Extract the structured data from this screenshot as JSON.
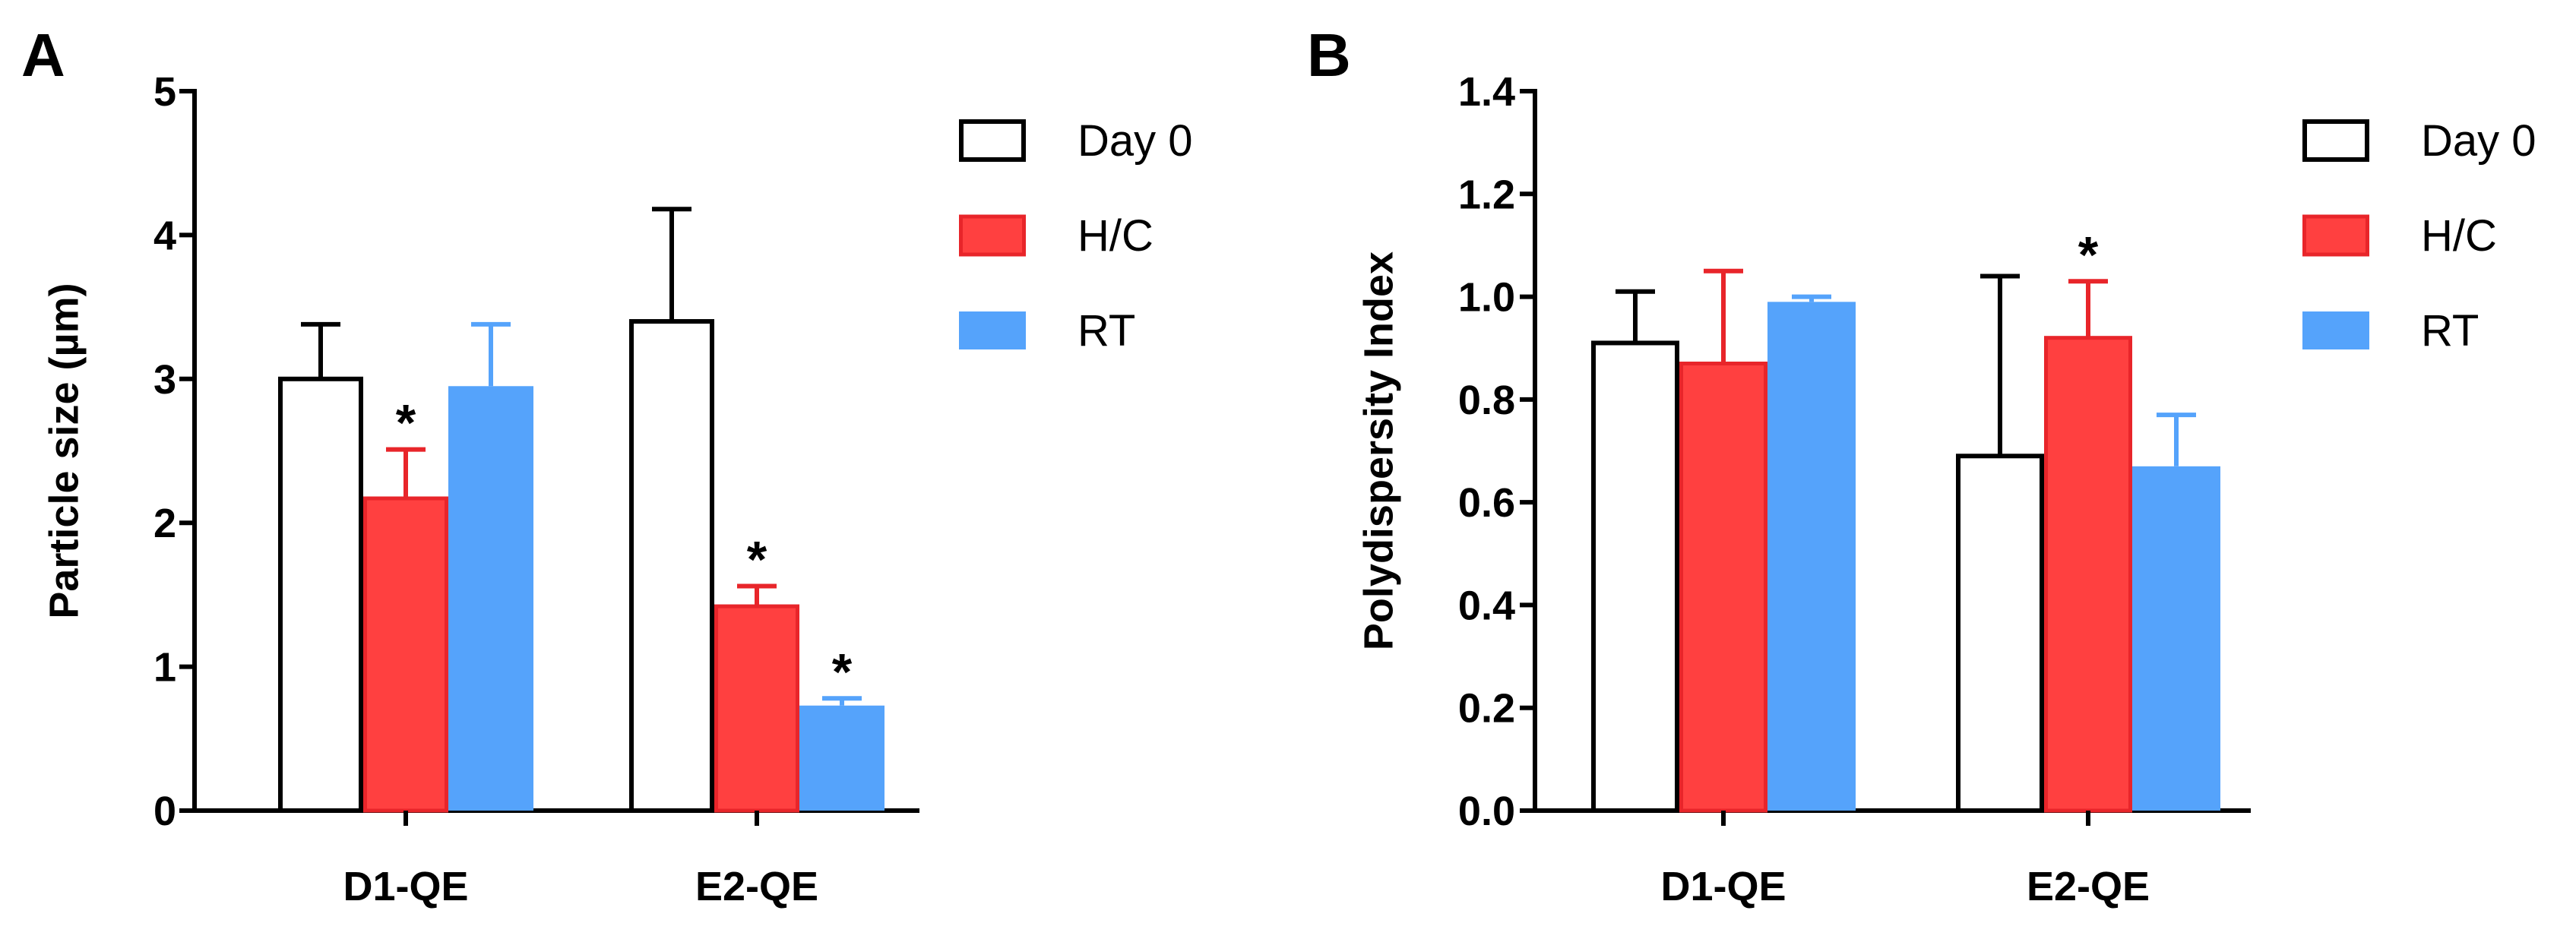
{
  "chart_data": [
    {
      "panel": "A",
      "type": "bar",
      "title": "",
      "xlabel": "",
      "ylabel": "Particle size (µm)",
      "ylim": [
        0,
        5
      ],
      "yticks": [
        "0",
        "1",
        "2",
        "3",
        "4",
        "5"
      ],
      "categories": [
        "D1-QE",
        "E2-QE"
      ],
      "series": [
        {
          "name": "Day 0",
          "key": "day0",
          "values": [
            3.0,
            3.4
          ],
          "errors": [
            0.38,
            0.78
          ],
          "significant": [
            false,
            false
          ]
        },
        {
          "name": "H/C",
          "key": "hc",
          "values": [
            2.17,
            1.42
          ],
          "errors": [
            0.34,
            0.14
          ],
          "significant": [
            true,
            true
          ]
        },
        {
          "name": "RT",
          "key": "rt",
          "values": [
            2.95,
            0.73
          ],
          "errors": [
            0.43,
            0.05
          ],
          "significant": [
            false,
            true
          ]
        }
      ],
      "significance_label": "*",
      "legend": [
        "Day 0",
        "H/C",
        "RT"
      ],
      "legend_position": "top-right"
    },
    {
      "panel": "B",
      "type": "bar",
      "title": "",
      "xlabel": "",
      "ylabel": "Polydispersity Index",
      "ylim": [
        0,
        1.4
      ],
      "yticks": [
        "0.0",
        "0.2",
        "0.4",
        "0.6",
        "0.8",
        "1.0",
        "1.2",
        "1.4"
      ],
      "categories": [
        "D1-QE",
        "E2-QE"
      ],
      "series": [
        {
          "name": "Day 0",
          "key": "day0",
          "values": [
            0.91,
            0.69
          ],
          "errors": [
            0.1,
            0.35
          ],
          "significant": [
            false,
            false
          ]
        },
        {
          "name": "H/C",
          "key": "hc",
          "values": [
            0.87,
            0.92
          ],
          "errors": [
            0.18,
            0.11
          ],
          "significant": [
            false,
            true
          ]
        },
        {
          "name": "RT",
          "key": "rt",
          "values": [
            0.99,
            0.67
          ],
          "errors": [
            0.01,
            0.1
          ],
          "significant": [
            false,
            false
          ]
        }
      ],
      "significance_label": "*",
      "legend": [
        "Day 0",
        "H/C",
        "RT"
      ],
      "legend_position": "top-right"
    }
  ],
  "colors": {
    "day0_fill": "#ffffff",
    "day0_stroke": "#000000",
    "hc_fill": "#ff4040",
    "hc_stroke": "#e8252a",
    "rt_fill": "#55a3fb",
    "rt_stroke": "#55a3fb",
    "axis": "#000000"
  }
}
